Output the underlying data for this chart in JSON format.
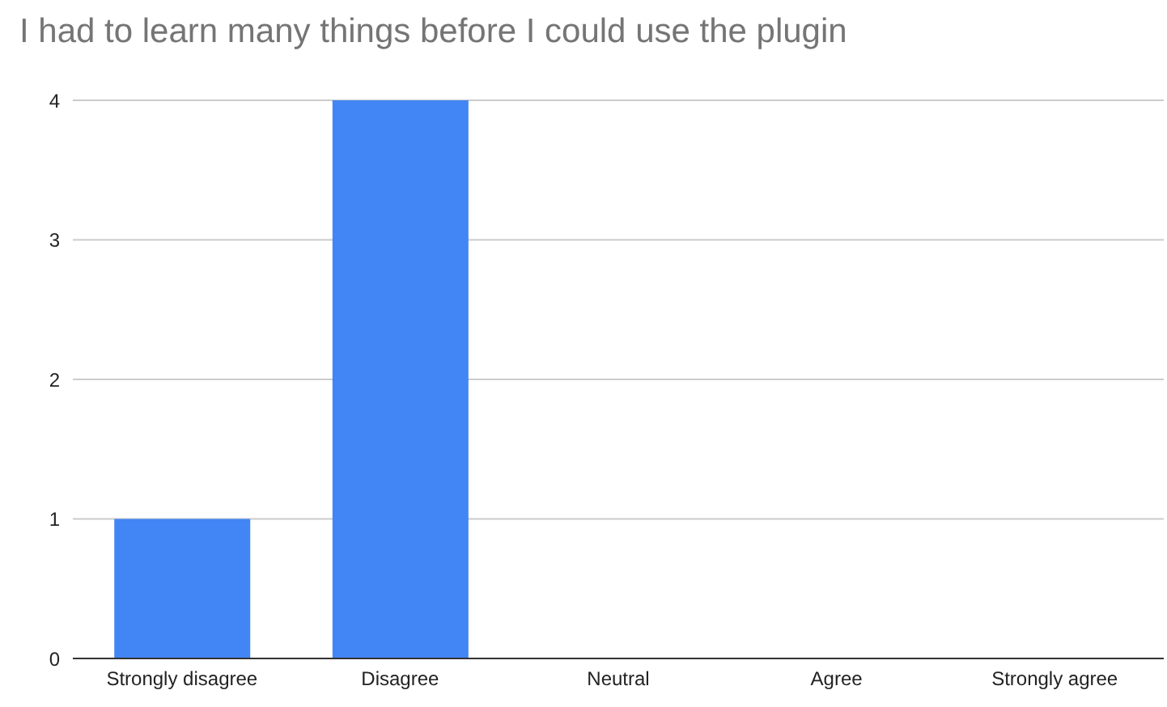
{
  "chart_data": {
    "type": "bar",
    "title": "I had to learn many things before I could use the plugin",
    "categories": [
      "Strongly disagree",
      "Disagree",
      "Neutral",
      "Agree",
      "Strongly agree"
    ],
    "values": [
      1,
      4,
      0,
      0,
      0
    ],
    "color": "#4285f4",
    "ylim": [
      0,
      4
    ],
    "yticks": [
      0,
      1,
      2,
      3,
      4
    ],
    "grid": "y",
    "legend": false
  }
}
